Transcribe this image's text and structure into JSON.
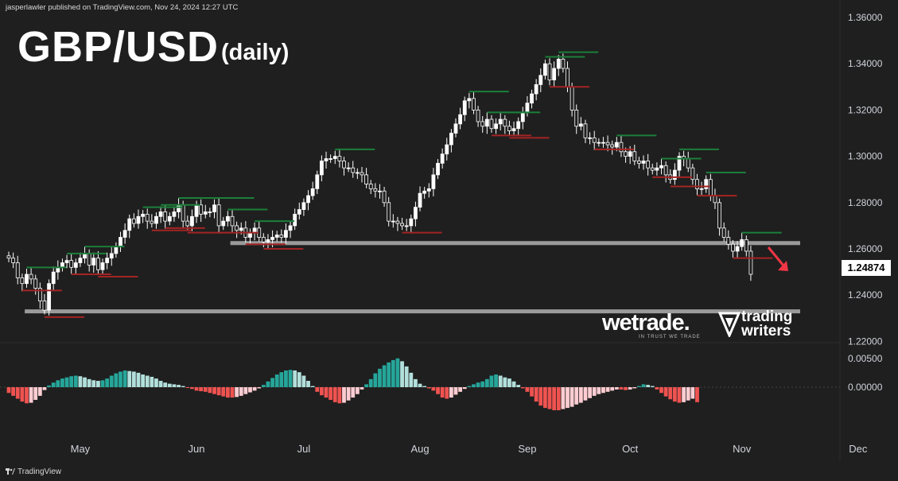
{
  "header": {
    "publisher_line": "jasperlawler published on TradingView.com, Nov 24, 2024 12:27 UTC"
  },
  "title": "GBP/USD",
  "subtitle": "(daily)",
  "current_price_label": "1.24874",
  "logos": {
    "wetrade": "wetrade.",
    "wetrade_tagline": "IN TRUST WE TRADE",
    "tradingwriters_line1": "trading",
    "tradingwriters_line2": "writers"
  },
  "footer": {
    "brand": "TradingView"
  },
  "colors": {
    "background": "#1f1f1f",
    "bull_body": "#ffffff",
    "bear_body": "#1f1f1f",
    "candle_wick": "#ffffff",
    "level_line": "#9a9a9a",
    "resistance_mark": "#1b7f3a",
    "support_mark": "#a32424",
    "hist_pos_strong": "#26a69a",
    "hist_pos_weak": "#b2dfdb",
    "hist_neg_strong": "#ef5350",
    "hist_neg_weak": "#ffcdd2",
    "arrow": "#f23645"
  },
  "chart_data": {
    "type": "candlestick",
    "title": "GBP/USD (daily)",
    "y_axis": {
      "range": [
        1.215,
        1.36
      ],
      "ticks": [
        "1.36000",
        "1.34000",
        "1.32000",
        "1.30000",
        "1.28000",
        "1.26000",
        "1.24000",
        "1.22000"
      ]
    },
    "x_axis": {
      "tick_labels": [
        "May",
        "Jun",
        "Jul",
        "Aug",
        "Sep",
        "Oct",
        "Nov",
        "Dec"
      ],
      "tick_bar_index": [
        16,
        42,
        66,
        92,
        116,
        139,
        164,
        190
      ]
    },
    "last_price": 1.24874,
    "horizontal_levels": [
      {
        "value": 1.2625,
        "from_bar": 51,
        "to_bar": 196
      },
      {
        "value": 1.233,
        "from_bar": 5,
        "to_bar": 196
      }
    ],
    "close_series": [
      1.256,
      1.254,
      1.2475,
      1.245,
      1.249,
      1.247,
      1.243,
      1.2375,
      1.2335,
      1.245,
      1.25,
      1.252,
      1.254,
      1.255,
      1.252,
      1.254,
      1.256,
      1.258,
      1.253,
      1.256,
      1.251,
      1.254,
      1.256,
      1.258,
      1.261,
      1.265,
      1.268,
      1.273,
      1.271,
      1.274,
      1.275,
      1.272,
      1.271,
      1.274,
      1.276,
      1.272,
      1.274,
      1.276,
      1.279,
      1.272,
      1.27,
      1.274,
      1.279,
      1.275,
      1.276,
      1.276,
      1.279,
      1.27,
      1.272,
      1.274,
      1.27,
      1.268,
      1.269,
      1.265,
      1.267,
      1.269,
      1.265,
      1.263,
      1.264,
      1.265,
      1.266,
      1.265,
      1.268,
      1.27,
      1.275,
      1.277,
      1.28,
      1.283,
      1.286,
      1.292,
      1.298,
      1.299,
      1.299,
      1.3,
      1.298,
      1.295,
      1.295,
      1.293,
      1.293,
      1.292,
      1.288,
      1.286,
      1.285,
      1.285,
      1.28,
      1.272,
      1.272,
      1.271,
      1.27,
      1.27,
      1.273,
      1.278,
      1.284,
      1.285,
      1.286,
      1.292,
      1.297,
      1.301,
      1.305,
      1.31,
      1.314,
      1.318,
      1.324,
      1.325,
      1.32,
      1.315,
      1.313,
      1.316,
      1.312,
      1.314,
      1.316,
      1.313,
      1.311,
      1.312,
      1.315,
      1.319,
      1.323,
      1.327,
      1.331,
      1.335,
      1.34,
      1.333,
      1.338,
      1.342,
      1.338,
      1.33,
      1.32,
      1.313,
      1.314,
      1.308,
      1.308,
      1.306,
      1.306,
      1.306,
      1.305,
      1.304,
      1.306,
      1.302,
      1.3,
      1.302,
      1.298,
      1.297,
      1.298,
      1.295,
      1.294,
      1.295,
      1.296,
      1.292,
      1.29,
      1.294,
      1.3,
      1.299,
      1.295,
      1.29,
      1.286,
      1.286,
      1.29,
      1.283,
      1.28,
      1.269,
      1.265,
      1.262,
      1.259,
      1.261,
      1.264,
      1.259,
      1.249
    ],
    "histogram_range": [
      -0.008,
      0.008
    ],
    "histogram_ticks": [
      "0.00500",
      "0.00000"
    ],
    "histogram_values": [
      -0.001,
      -0.0015,
      -0.002,
      -0.0025,
      -0.0028,
      -0.0027,
      -0.0022,
      -0.0015,
      -0.0005,
      0.0003,
      0.0008,
      0.0012,
      0.0015,
      0.0017,
      0.0019,
      0.002,
      0.0019,
      0.0017,
      0.0014,
      0.0012,
      0.0011,
      0.0012,
      0.0015,
      0.002,
      0.0024,
      0.0027,
      0.0029,
      0.0028,
      0.0027,
      0.0025,
      0.0022,
      0.002,
      0.0018,
      0.0015,
      0.0011,
      0.0008,
      0.0006,
      0.0005,
      0.0004,
      0.0002,
      -0.0001,
      -0.0003,
      -0.0006,
      -0.0007,
      -0.0008,
      -0.001,
      -0.0012,
      -0.0014,
      -0.0016,
      -0.0018,
      -0.0018,
      -0.0017,
      -0.0015,
      -0.0012,
      -0.0009,
      -0.0006,
      -0.0002,
      0.0004,
      0.001,
      0.0016,
      0.0022,
      0.0026,
      0.0029,
      0.003,
      0.0029,
      0.0026,
      0.002,
      0.0011,
      0.0002,
      -0.0008,
      -0.0014,
      -0.0018,
      -0.0022,
      -0.0026,
      -0.0028,
      -0.0027,
      -0.0023,
      -0.0018,
      -0.0012,
      -0.0004,
      0.0005,
      0.0014,
      0.0024,
      0.0032,
      0.0038,
      0.0043,
      0.0047,
      0.005,
      0.0045,
      0.0036,
      0.0025,
      0.0014,
      0.0006,
      0.0002,
      -0.0002,
      -0.0006,
      -0.0012,
      -0.0018,
      -0.002,
      -0.0018,
      -0.0013,
      -0.0008,
      -0.0003,
      0.0002,
      0.0005,
      0.0008,
      0.001,
      0.0014,
      0.002,
      0.0022,
      0.002,
      0.0017,
      0.0015,
      0.001,
      0.0004,
      -0.0002,
      -0.0008,
      -0.0016,
      -0.0025,
      -0.0032,
      -0.0036,
      -0.0038,
      -0.004,
      -0.004,
      -0.0038,
      -0.0036,
      -0.0034,
      -0.003,
      -0.0027,
      -0.0023,
      -0.0019,
      -0.0015,
      -0.0012,
      -0.001,
      -0.0008,
      -0.0006,
      -0.0004,
      -0.0004,
      -0.0005,
      -0.0004,
      -0.0002,
      0.0002,
      0.0005,
      0.0004,
      0.0002,
      -0.0004,
      -0.001,
      -0.0016,
      -0.0021,
      -0.0025,
      -0.0027,
      -0.0026,
      -0.0023,
      -0.002,
      -0.0026
    ]
  }
}
